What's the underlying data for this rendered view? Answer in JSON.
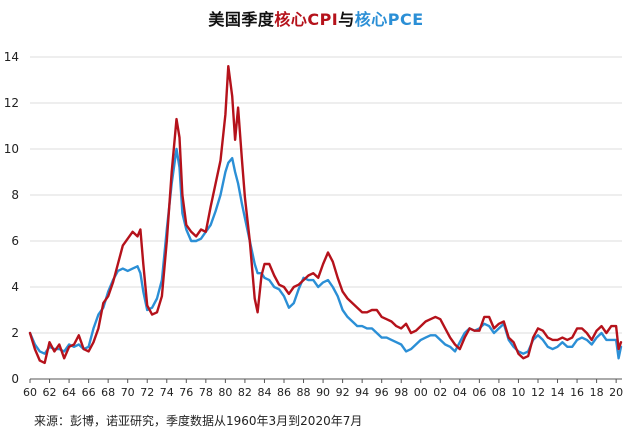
{
  "title": {
    "part1": "美国季度",
    "part2": "核心CPI",
    "part3": "与",
    "part4": "核心PCE"
  },
  "source": "来源：彭博，诺亚研究，季度数据从1960年3月到2020年7月",
  "colors": {
    "cpi": "#b5121b",
    "pce": "#2b8fd6"
  },
  "chart_data": {
    "type": "line",
    "title": "美国季度核心CPI与核心PCE",
    "xlabel": "",
    "ylabel": "",
    "xlim": [
      1960,
      2020.6
    ],
    "ylim": [
      0,
      14
    ],
    "grid": "horizontal",
    "legend": "none",
    "y_ticks": [
      "0",
      "2",
      "4",
      "6",
      "8",
      "10",
      "12",
      "14"
    ],
    "x_ticks": [
      "60",
      "62",
      "64",
      "66",
      "68",
      "70",
      "72",
      "74",
      "76",
      "78",
      "80",
      "82",
      "84",
      "86",
      "88",
      "90",
      "92",
      "94",
      "96",
      "98",
      "00",
      "02",
      "04",
      "06",
      "08",
      "10",
      "12",
      "14",
      "16",
      "18",
      "20"
    ],
    "series": [
      {
        "name": "核心CPI",
        "color": "#b5121b",
        "points": [
          [
            1960,
            2.0
          ],
          [
            1960.5,
            1.3
          ],
          [
            1961,
            0.8
          ],
          [
            1961.5,
            0.7
          ],
          [
            1962,
            1.6
          ],
          [
            1962.5,
            1.2
          ],
          [
            1963,
            1.5
          ],
          [
            1963.5,
            0.9
          ],
          [
            1964,
            1.4
          ],
          [
            1964.5,
            1.5
          ],
          [
            1965,
            1.9
          ],
          [
            1965.5,
            1.3
          ],
          [
            1966,
            1.2
          ],
          [
            1966.5,
            1.6
          ],
          [
            1967,
            2.2
          ],
          [
            1967.5,
            3.3
          ],
          [
            1968,
            3.6
          ],
          [
            1968.5,
            4.2
          ],
          [
            1969,
            5.0
          ],
          [
            1969.5,
            5.8
          ],
          [
            1970,
            6.1
          ],
          [
            1970.5,
            6.4
          ],
          [
            1971,
            6.2
          ],
          [
            1971.3,
            6.5
          ],
          [
            1971.6,
            5.0
          ],
          [
            1972,
            3.2
          ],
          [
            1972.5,
            2.8
          ],
          [
            1973,
            2.9
          ],
          [
            1973.5,
            3.6
          ],
          [
            1974,
            6.0
          ],
          [
            1974.5,
            9.0
          ],
          [
            1975,
            11.3
          ],
          [
            1975.3,
            10.5
          ],
          [
            1975.6,
            8.0
          ],
          [
            1976,
            6.7
          ],
          [
            1976.5,
            6.4
          ],
          [
            1977,
            6.2
          ],
          [
            1977.5,
            6.5
          ],
          [
            1978,
            6.4
          ],
          [
            1978.5,
            7.5
          ],
          [
            1979,
            8.5
          ],
          [
            1979.5,
            9.5
          ],
          [
            1980,
            11.5
          ],
          [
            1980.3,
            13.6
          ],
          [
            1980.7,
            12.3
          ],
          [
            1981,
            10.4
          ],
          [
            1981.3,
            11.8
          ],
          [
            1981.7,
            9.5
          ],
          [
            1982,
            7.9
          ],
          [
            1982.5,
            6.0
          ],
          [
            1983,
            3.5
          ],
          [
            1983.3,
            2.9
          ],
          [
            1983.7,
            4.5
          ],
          [
            1984,
            5.0
          ],
          [
            1984.5,
            5.0
          ],
          [
            1985,
            4.5
          ],
          [
            1985.5,
            4.1
          ],
          [
            1986,
            4.0
          ],
          [
            1986.5,
            3.7
          ],
          [
            1987,
            4.0
          ],
          [
            1987.5,
            4.1
          ],
          [
            1988,
            4.3
          ],
          [
            1988.5,
            4.5
          ],
          [
            1989,
            4.6
          ],
          [
            1989.5,
            4.4
          ],
          [
            1990,
            5.0
          ],
          [
            1990.5,
            5.5
          ],
          [
            1991,
            5.1
          ],
          [
            1991.5,
            4.4
          ],
          [
            1992,
            3.8
          ],
          [
            1992.5,
            3.5
          ],
          [
            1993,
            3.3
          ],
          [
            1993.5,
            3.1
          ],
          [
            1994,
            2.9
          ],
          [
            1994.5,
            2.9
          ],
          [
            1995,
            3.0
          ],
          [
            1995.5,
            3.0
          ],
          [
            1996,
            2.7
          ],
          [
            1996.5,
            2.6
          ],
          [
            1997,
            2.5
          ],
          [
            1997.5,
            2.3
          ],
          [
            1998,
            2.2
          ],
          [
            1998.5,
            2.4
          ],
          [
            1999,
            2.0
          ],
          [
            1999.5,
            2.1
          ],
          [
            2000,
            2.3
          ],
          [
            2000.5,
            2.5
          ],
          [
            2001,
            2.6
          ],
          [
            2001.5,
            2.7
          ],
          [
            2002,
            2.6
          ],
          [
            2002.5,
            2.2
          ],
          [
            2003,
            1.8
          ],
          [
            2003.5,
            1.5
          ],
          [
            2004,
            1.3
          ],
          [
            2004.5,
            1.8
          ],
          [
            2005,
            2.2
          ],
          [
            2005.5,
            2.1
          ],
          [
            2006,
            2.1
          ],
          [
            2006.5,
            2.7
          ],
          [
            2007,
            2.7
          ],
          [
            2007.5,
            2.2
          ],
          [
            2008,
            2.4
          ],
          [
            2008.5,
            2.5
          ],
          [
            2009,
            1.8
          ],
          [
            2009.5,
            1.6
          ],
          [
            2010,
            1.1
          ],
          [
            2010.5,
            0.9
          ],
          [
            2011,
            1.0
          ],
          [
            2011.5,
            1.8
          ],
          [
            2012,
            2.2
          ],
          [
            2012.5,
            2.1
          ],
          [
            2013,
            1.8
          ],
          [
            2013.5,
            1.7
          ],
          [
            2014,
            1.7
          ],
          [
            2014.5,
            1.8
          ],
          [
            2015,
            1.7
          ],
          [
            2015.5,
            1.8
          ],
          [
            2016,
            2.2
          ],
          [
            2016.5,
            2.2
          ],
          [
            2017,
            2.0
          ],
          [
            2017.5,
            1.7
          ],
          [
            2018,
            2.1
          ],
          [
            2018.5,
            2.3
          ],
          [
            2019,
            2.0
          ],
          [
            2019.5,
            2.3
          ],
          [
            2020,
            2.3
          ],
          [
            2020.25,
            1.3
          ],
          [
            2020.5,
            1.6
          ]
        ]
      },
      {
        "name": "核心PCE",
        "color": "#2b8fd6",
        "points": [
          [
            1960,
            2.0
          ],
          [
            1960.5,
            1.5
          ],
          [
            1961,
            1.2
          ],
          [
            1961.5,
            1.1
          ],
          [
            1962,
            1.4
          ],
          [
            1962.5,
            1.3
          ],
          [
            1963,
            1.3
          ],
          [
            1963.5,
            1.2
          ],
          [
            1964,
            1.5
          ],
          [
            1964.5,
            1.4
          ],
          [
            1965,
            1.5
          ],
          [
            1965.5,
            1.3
          ],
          [
            1966,
            1.4
          ],
          [
            1966.5,
            2.2
          ],
          [
            1967,
            2.8
          ],
          [
            1967.5,
            3.1
          ],
          [
            1968,
            3.8
          ],
          [
            1968.5,
            4.3
          ],
          [
            1969,
            4.7
          ],
          [
            1969.5,
            4.8
          ],
          [
            1970,
            4.7
          ],
          [
            1970.5,
            4.8
          ],
          [
            1971,
            4.9
          ],
          [
            1971.3,
            4.6
          ],
          [
            1971.6,
            3.8
          ],
          [
            1972,
            3.0
          ],
          [
            1972.5,
            3.1
          ],
          [
            1973,
            3.5
          ],
          [
            1973.5,
            4.3
          ],
          [
            1974,
            6.5
          ],
          [
            1974.5,
            8.5
          ],
          [
            1975,
            10.0
          ],
          [
            1975.3,
            9.2
          ],
          [
            1975.6,
            7.2
          ],
          [
            1976,
            6.5
          ],
          [
            1976.5,
            6.0
          ],
          [
            1977,
            6.0
          ],
          [
            1977.5,
            6.1
          ],
          [
            1978,
            6.4
          ],
          [
            1978.5,
            6.7
          ],
          [
            1979,
            7.3
          ],
          [
            1979.5,
            8.0
          ],
          [
            1980,
            9.0
          ],
          [
            1980.3,
            9.4
          ],
          [
            1980.7,
            9.6
          ],
          [
            1981,
            9.0
          ],
          [
            1981.3,
            8.5
          ],
          [
            1981.7,
            7.6
          ],
          [
            1982,
            7.0
          ],
          [
            1982.5,
            6.0
          ],
          [
            1983,
            5.0
          ],
          [
            1983.3,
            4.6
          ],
          [
            1983.7,
            4.6
          ],
          [
            1984,
            4.4
          ],
          [
            1984.5,
            4.3
          ],
          [
            1985,
            4.0
          ],
          [
            1985.5,
            3.9
          ],
          [
            1986,
            3.6
          ],
          [
            1986.5,
            3.1
          ],
          [
            1987,
            3.3
          ],
          [
            1987.5,
            3.9
          ],
          [
            1988,
            4.4
          ],
          [
            1988.5,
            4.3
          ],
          [
            1989,
            4.3
          ],
          [
            1989.5,
            4.0
          ],
          [
            1990,
            4.2
          ],
          [
            1990.5,
            4.3
          ],
          [
            1991,
            4.0
          ],
          [
            1991.5,
            3.6
          ],
          [
            1992,
            3.0
          ],
          [
            1992.5,
            2.7
          ],
          [
            1993,
            2.5
          ],
          [
            1993.5,
            2.3
          ],
          [
            1994,
            2.3
          ],
          [
            1994.5,
            2.2
          ],
          [
            1995,
            2.2
          ],
          [
            1995.5,
            2.0
          ],
          [
            1996,
            1.8
          ],
          [
            1996.5,
            1.8
          ],
          [
            1997,
            1.7
          ],
          [
            1997.5,
            1.6
          ],
          [
            1998,
            1.5
          ],
          [
            1998.5,
            1.2
          ],
          [
            1999,
            1.3
          ],
          [
            1999.5,
            1.5
          ],
          [
            2000,
            1.7
          ],
          [
            2000.5,
            1.8
          ],
          [
            2001,
            1.9
          ],
          [
            2001.5,
            1.9
          ],
          [
            2002,
            1.7
          ],
          [
            2002.5,
            1.5
          ],
          [
            2003,
            1.4
          ],
          [
            2003.5,
            1.2
          ],
          [
            2004,
            1.6
          ],
          [
            2004.5,
            2.0
          ],
          [
            2005,
            2.2
          ],
          [
            2005.5,
            2.1
          ],
          [
            2006,
            2.2
          ],
          [
            2006.5,
            2.4
          ],
          [
            2007,
            2.3
          ],
          [
            2007.5,
            2.0
          ],
          [
            2008,
            2.2
          ],
          [
            2008.5,
            2.4
          ],
          [
            2009,
            1.7
          ],
          [
            2009.5,
            1.4
          ],
          [
            2010,
            1.2
          ],
          [
            2010.5,
            1.1
          ],
          [
            2011,
            1.2
          ],
          [
            2011.5,
            1.7
          ],
          [
            2012,
            1.9
          ],
          [
            2012.5,
            1.7
          ],
          [
            2013,
            1.4
          ],
          [
            2013.5,
            1.3
          ],
          [
            2014,
            1.4
          ],
          [
            2014.5,
            1.6
          ],
          [
            2015,
            1.4
          ],
          [
            2015.5,
            1.4
          ],
          [
            2016,
            1.7
          ],
          [
            2016.5,
            1.8
          ],
          [
            2017,
            1.7
          ],
          [
            2017.5,
            1.5
          ],
          [
            2018,
            1.8
          ],
          [
            2018.5,
            2.0
          ],
          [
            2019,
            1.7
          ],
          [
            2019.5,
            1.7
          ],
          [
            2020,
            1.7
          ],
          [
            2020.25,
            0.9
          ],
          [
            2020.5,
            1.4
          ]
        ]
      }
    ]
  }
}
